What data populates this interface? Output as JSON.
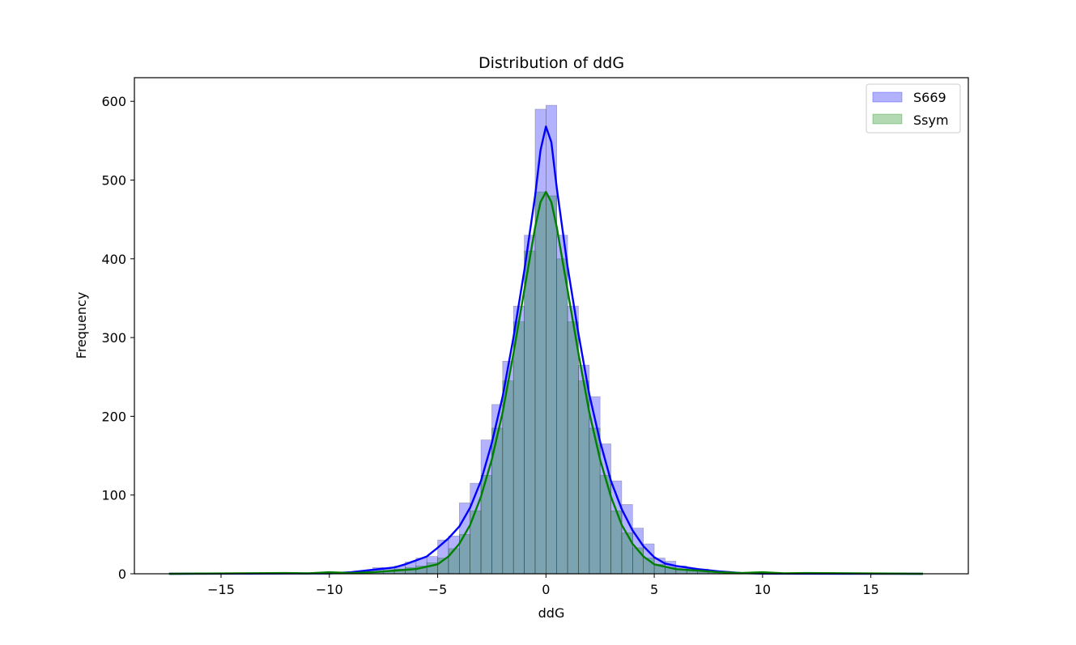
{
  "chart_data": {
    "type": "bar",
    "title": "Distribution of ddG",
    "xlabel": "ddG",
    "ylabel": "Frequency",
    "xlim": [
      -19,
      19.5
    ],
    "ylim": [
      0,
      630
    ],
    "xticks": [
      -15,
      -10,
      -5,
      0,
      5,
      10,
      15
    ],
    "xtick_labels": [
      "−15",
      "−10",
      "−5",
      "0",
      "5",
      "10",
      "15"
    ],
    "yticks": [
      0,
      100,
      200,
      300,
      400,
      500,
      600
    ],
    "ytick_labels": [
      "0",
      "100",
      "200",
      "300",
      "400",
      "500",
      "600"
    ],
    "grid": false,
    "legend_position": "top-right",
    "bin_width": 0.5,
    "bin_centers": [
      -8.75,
      -8.25,
      -7.75,
      -7.25,
      -6.75,
      -6.25,
      -5.75,
      -5.25,
      -4.75,
      -4.25,
      -3.75,
      -3.25,
      -2.75,
      -2.25,
      -1.75,
      -1.25,
      -0.75,
      -0.25,
      0.25,
      0.75,
      1.25,
      1.75,
      2.25,
      2.75,
      3.25,
      3.75,
      4.25,
      4.75,
      5.25,
      5.75,
      6.25,
      6.75,
      7.25,
      7.75,
      8.25,
      8.75
    ],
    "series": [
      {
        "name": "S669",
        "color": "#0000ff",
        "fill": "rgba(0,0,255,0.3)",
        "kde_color": "#0000ff",
        "counts": [
          2,
          4,
          8,
          6,
          10,
          15,
          20,
          22,
          43,
          48,
          90,
          115,
          170,
          215,
          270,
          340,
          430,
          590,
          595,
          430,
          340,
          265,
          225,
          165,
          118,
          88,
          58,
          38,
          20,
          16,
          10,
          7,
          6,
          4,
          3,
          2
        ],
        "kde": [
          [
            -17.4,
            0
          ],
          [
            -10,
            0.5
          ],
          [
            -9,
            2
          ],
          [
            -8,
            5
          ],
          [
            -7,
            8
          ],
          [
            -6.5,
            12
          ],
          [
            -6,
            17
          ],
          [
            -5.5,
            22
          ],
          [
            -5,
            33
          ],
          [
            -4.5,
            45
          ],
          [
            -4,
            60
          ],
          [
            -3.5,
            84
          ],
          [
            -3,
            118
          ],
          [
            -2.5,
            166
          ],
          [
            -2,
            225
          ],
          [
            -1.5,
            300
          ],
          [
            -1,
            385
          ],
          [
            -0.5,
            480
          ],
          [
            -0.25,
            538
          ],
          [
            0,
            568
          ],
          [
            0.25,
            548
          ],
          [
            0.5,
            490
          ],
          [
            1,
            390
          ],
          [
            1.5,
            305
          ],
          [
            2,
            228
          ],
          [
            2.5,
            168
          ],
          [
            3,
            118
          ],
          [
            3.5,
            82
          ],
          [
            4,
            55
          ],
          [
            4.5,
            35
          ],
          [
            5,
            21
          ],
          [
            5.5,
            13
          ],
          [
            6,
            10
          ],
          [
            6.5,
            8
          ],
          [
            7,
            6
          ],
          [
            8,
            3
          ],
          [
            9,
            1
          ],
          [
            10,
            0.2
          ],
          [
            17.4,
            0
          ]
        ]
      },
      {
        "name": "Ssym",
        "color": "#008000",
        "fill": "rgba(0,128,0,0.3)",
        "kde_color": "#008000",
        "counts": [
          0,
          0,
          2,
          4,
          6,
          8,
          10,
          14,
          20,
          32,
          50,
          80,
          125,
          185,
          245,
          320,
          410,
          485,
          480,
          400,
          320,
          245,
          185,
          125,
          80,
          52,
          33,
          20,
          12,
          8,
          5,
          4,
          2,
          2,
          0,
          0
        ],
        "kde": [
          [
            -17.4,
            0
          ],
          [
            -12,
            1
          ],
          [
            -11,
            0.5
          ],
          [
            -10,
            2
          ],
          [
            -9,
            1
          ],
          [
            -8,
            2
          ],
          [
            -7,
            4
          ],
          [
            -6,
            6
          ],
          [
            -5,
            12
          ],
          [
            -4.5,
            22
          ],
          [
            -4,
            38
          ],
          [
            -3.5,
            62
          ],
          [
            -3,
            98
          ],
          [
            -2.5,
            145
          ],
          [
            -2,
            205
          ],
          [
            -1.5,
            280
          ],
          [
            -1,
            360
          ],
          [
            -0.5,
            440
          ],
          [
            -0.25,
            472
          ],
          [
            0,
            485
          ],
          [
            0.25,
            472
          ],
          [
            0.5,
            440
          ],
          [
            1,
            360
          ],
          [
            1.5,
            280
          ],
          [
            2,
            205
          ],
          [
            2.5,
            145
          ],
          [
            3,
            98
          ],
          [
            3.5,
            62
          ],
          [
            4,
            38
          ],
          [
            4.5,
            22
          ],
          [
            5,
            12
          ],
          [
            6,
            6
          ],
          [
            7,
            4
          ],
          [
            8,
            2
          ],
          [
            9,
            1
          ],
          [
            10,
            2
          ],
          [
            11,
            0.5
          ],
          [
            12,
            1
          ],
          [
            17.4,
            0
          ]
        ]
      }
    ]
  }
}
